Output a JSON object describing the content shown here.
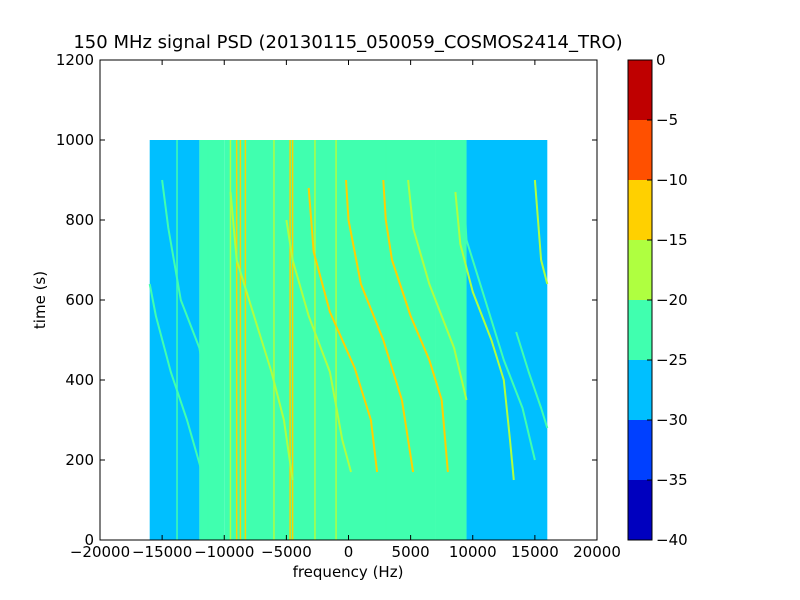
{
  "chart_data": {
    "type": "heatmap",
    "title": "150 MHz signal PSD (20130115_050059_COSMOS2414_TRO)",
    "xlabel": "frequency (Hz)",
    "ylabel": "time (s)",
    "xlim": [
      -20000,
      20000
    ],
    "ylim": [
      0,
      1200
    ],
    "xticks": [
      -20000,
      -15000,
      -10000,
      -5000,
      0,
      5000,
      10000,
      15000,
      20000
    ],
    "xtick_labels": [
      "−20000",
      "−15000",
      "−10000",
      "−5000",
      "0",
      "5000",
      "10000",
      "15000",
      "20000"
    ],
    "yticks": [
      0,
      200,
      400,
      600,
      800,
      1000,
      1200
    ],
    "ytick_labels": [
      "0",
      "200",
      "400",
      "600",
      "800",
      "1000",
      "1200"
    ],
    "data_extent": {
      "x": [
        -16000,
        16000
      ],
      "y": [
        0,
        1000
      ]
    },
    "colorbar": {
      "range": [
        -40,
        0
      ],
      "ticks": [
        0,
        -5,
        -10,
        -15,
        -20,
        -25,
        -30,
        -35,
        -40
      ],
      "tick_labels": [
        "0",
        "−5",
        "−10",
        "−15",
        "−20",
        "−25",
        "−30",
        "−35",
        "−40"
      ],
      "levels": [
        {
          "from": -40,
          "to": -35,
          "color": "#0000bf"
        },
        {
          "from": -35,
          "to": -30,
          "color": "#0040ff"
        },
        {
          "from": -30,
          "to": -25,
          "color": "#00bfff"
        },
        {
          "from": -25,
          "to": -20,
          "color": "#40ffaf"
        },
        {
          "from": -20,
          "to": -15,
          "color": "#afff40"
        },
        {
          "from": -15,
          "to": -10,
          "color": "#ffd000"
        },
        {
          "from": -10,
          "to": -5,
          "color": "#ff5000"
        },
        {
          "from": -5,
          "to": 0,
          "color": "#bf0000"
        }
      ]
    },
    "background_regions": [
      {
        "x": [
          -16000,
          -12000
        ],
        "level": -27
      },
      {
        "x": [
          -12000,
          -10000
        ],
        "level": -24
      },
      {
        "x": [
          -10000,
          7000
        ],
        "level": -22
      },
      {
        "x": [
          7000,
          9500
        ],
        "level": -24
      },
      {
        "x": [
          9500,
          16000
        ],
        "level": -27
      }
    ],
    "vertical_lines": [
      {
        "x": -13800,
        "level": -24
      },
      {
        "x": -11300,
        "level": -24
      },
      {
        "x": -9500,
        "level": -20
      },
      {
        "x": -9000,
        "level": -15
      },
      {
        "x": -8700,
        "level": -15
      },
      {
        "x": -8300,
        "level": -15
      },
      {
        "x": -6000,
        "level": -20
      },
      {
        "x": -4700,
        "level": -13
      },
      {
        "x": -4500,
        "level": -15
      },
      {
        "x": -2700,
        "level": -20
      },
      {
        "x": -1000,
        "level": -17
      },
      {
        "x": 3000,
        "level": -22
      }
    ],
    "drift_traces": [
      {
        "level": -22,
        "points": [
          [
            -15000,
            900
          ],
          [
            -14500,
            780
          ],
          [
            -13500,
            600
          ],
          [
            -12000,
            480
          ],
          [
            -11000,
            300
          ],
          [
            -10500,
            150
          ]
        ]
      },
      {
        "level": -22,
        "points": [
          [
            -16000,
            640
          ],
          [
            -15500,
            560
          ],
          [
            -14300,
            420
          ],
          [
            -13000,
            300
          ],
          [
            -11800,
            170
          ],
          [
            -11000,
            100
          ]
        ]
      },
      {
        "level": -18,
        "points": [
          [
            -9500,
            870
          ],
          [
            -9000,
            700
          ],
          [
            -7500,
            550
          ],
          [
            -6200,
            420
          ],
          [
            -5200,
            300
          ],
          [
            -4500,
            150
          ]
        ]
      },
      {
        "level": -16,
        "points": [
          [
            -5000,
            800
          ],
          [
            -4500,
            700
          ],
          [
            -3200,
            560
          ],
          [
            -1500,
            420
          ],
          [
            -500,
            250
          ],
          [
            200,
            170
          ]
        ]
      },
      {
        "level": -14,
        "points": [
          [
            -3200,
            880
          ],
          [
            -2800,
            720
          ],
          [
            -1500,
            570
          ],
          [
            500,
            430
          ],
          [
            1800,
            300
          ],
          [
            2300,
            170
          ]
        ]
      },
      {
        "level": -14,
        "points": [
          [
            -200,
            900
          ],
          [
            0,
            800
          ],
          [
            1000,
            640
          ],
          [
            2800,
            500
          ],
          [
            4300,
            350
          ],
          [
            5200,
            170
          ]
        ]
      },
      {
        "level": -14,
        "points": [
          [
            2800,
            900
          ],
          [
            3000,
            800
          ],
          [
            3500,
            700
          ],
          [
            5000,
            560
          ],
          [
            6500,
            450
          ],
          [
            7500,
            350
          ],
          [
            8000,
            170
          ]
        ]
      },
      {
        "level": -16,
        "points": [
          [
            4800,
            900
          ],
          [
            5200,
            780
          ],
          [
            6500,
            640
          ],
          [
            8500,
            480
          ],
          [
            9500,
            350
          ]
        ]
      },
      {
        "level": -20,
        "points": [
          [
            8600,
            870
          ],
          [
            9000,
            740
          ],
          [
            10000,
            620
          ],
          [
            11500,
            500
          ],
          [
            12500,
            400
          ],
          [
            13000,
            250
          ],
          [
            13300,
            150
          ]
        ]
      },
      {
        "level": -23,
        "points": [
          [
            9200,
            900
          ],
          [
            9500,
            750
          ],
          [
            11000,
            600
          ],
          [
            12500,
            450
          ],
          [
            14000,
            330
          ],
          [
            15000,
            200
          ]
        ]
      },
      {
        "level": -23,
        "points": [
          [
            13500,
            520
          ],
          [
            14500,
            420
          ],
          [
            15500,
            330
          ],
          [
            16000,
            280
          ]
        ]
      },
      {
        "level": -20,
        "points": [
          [
            15000,
            900
          ],
          [
            15500,
            700
          ],
          [
            16000,
            640
          ]
        ]
      }
    ]
  }
}
